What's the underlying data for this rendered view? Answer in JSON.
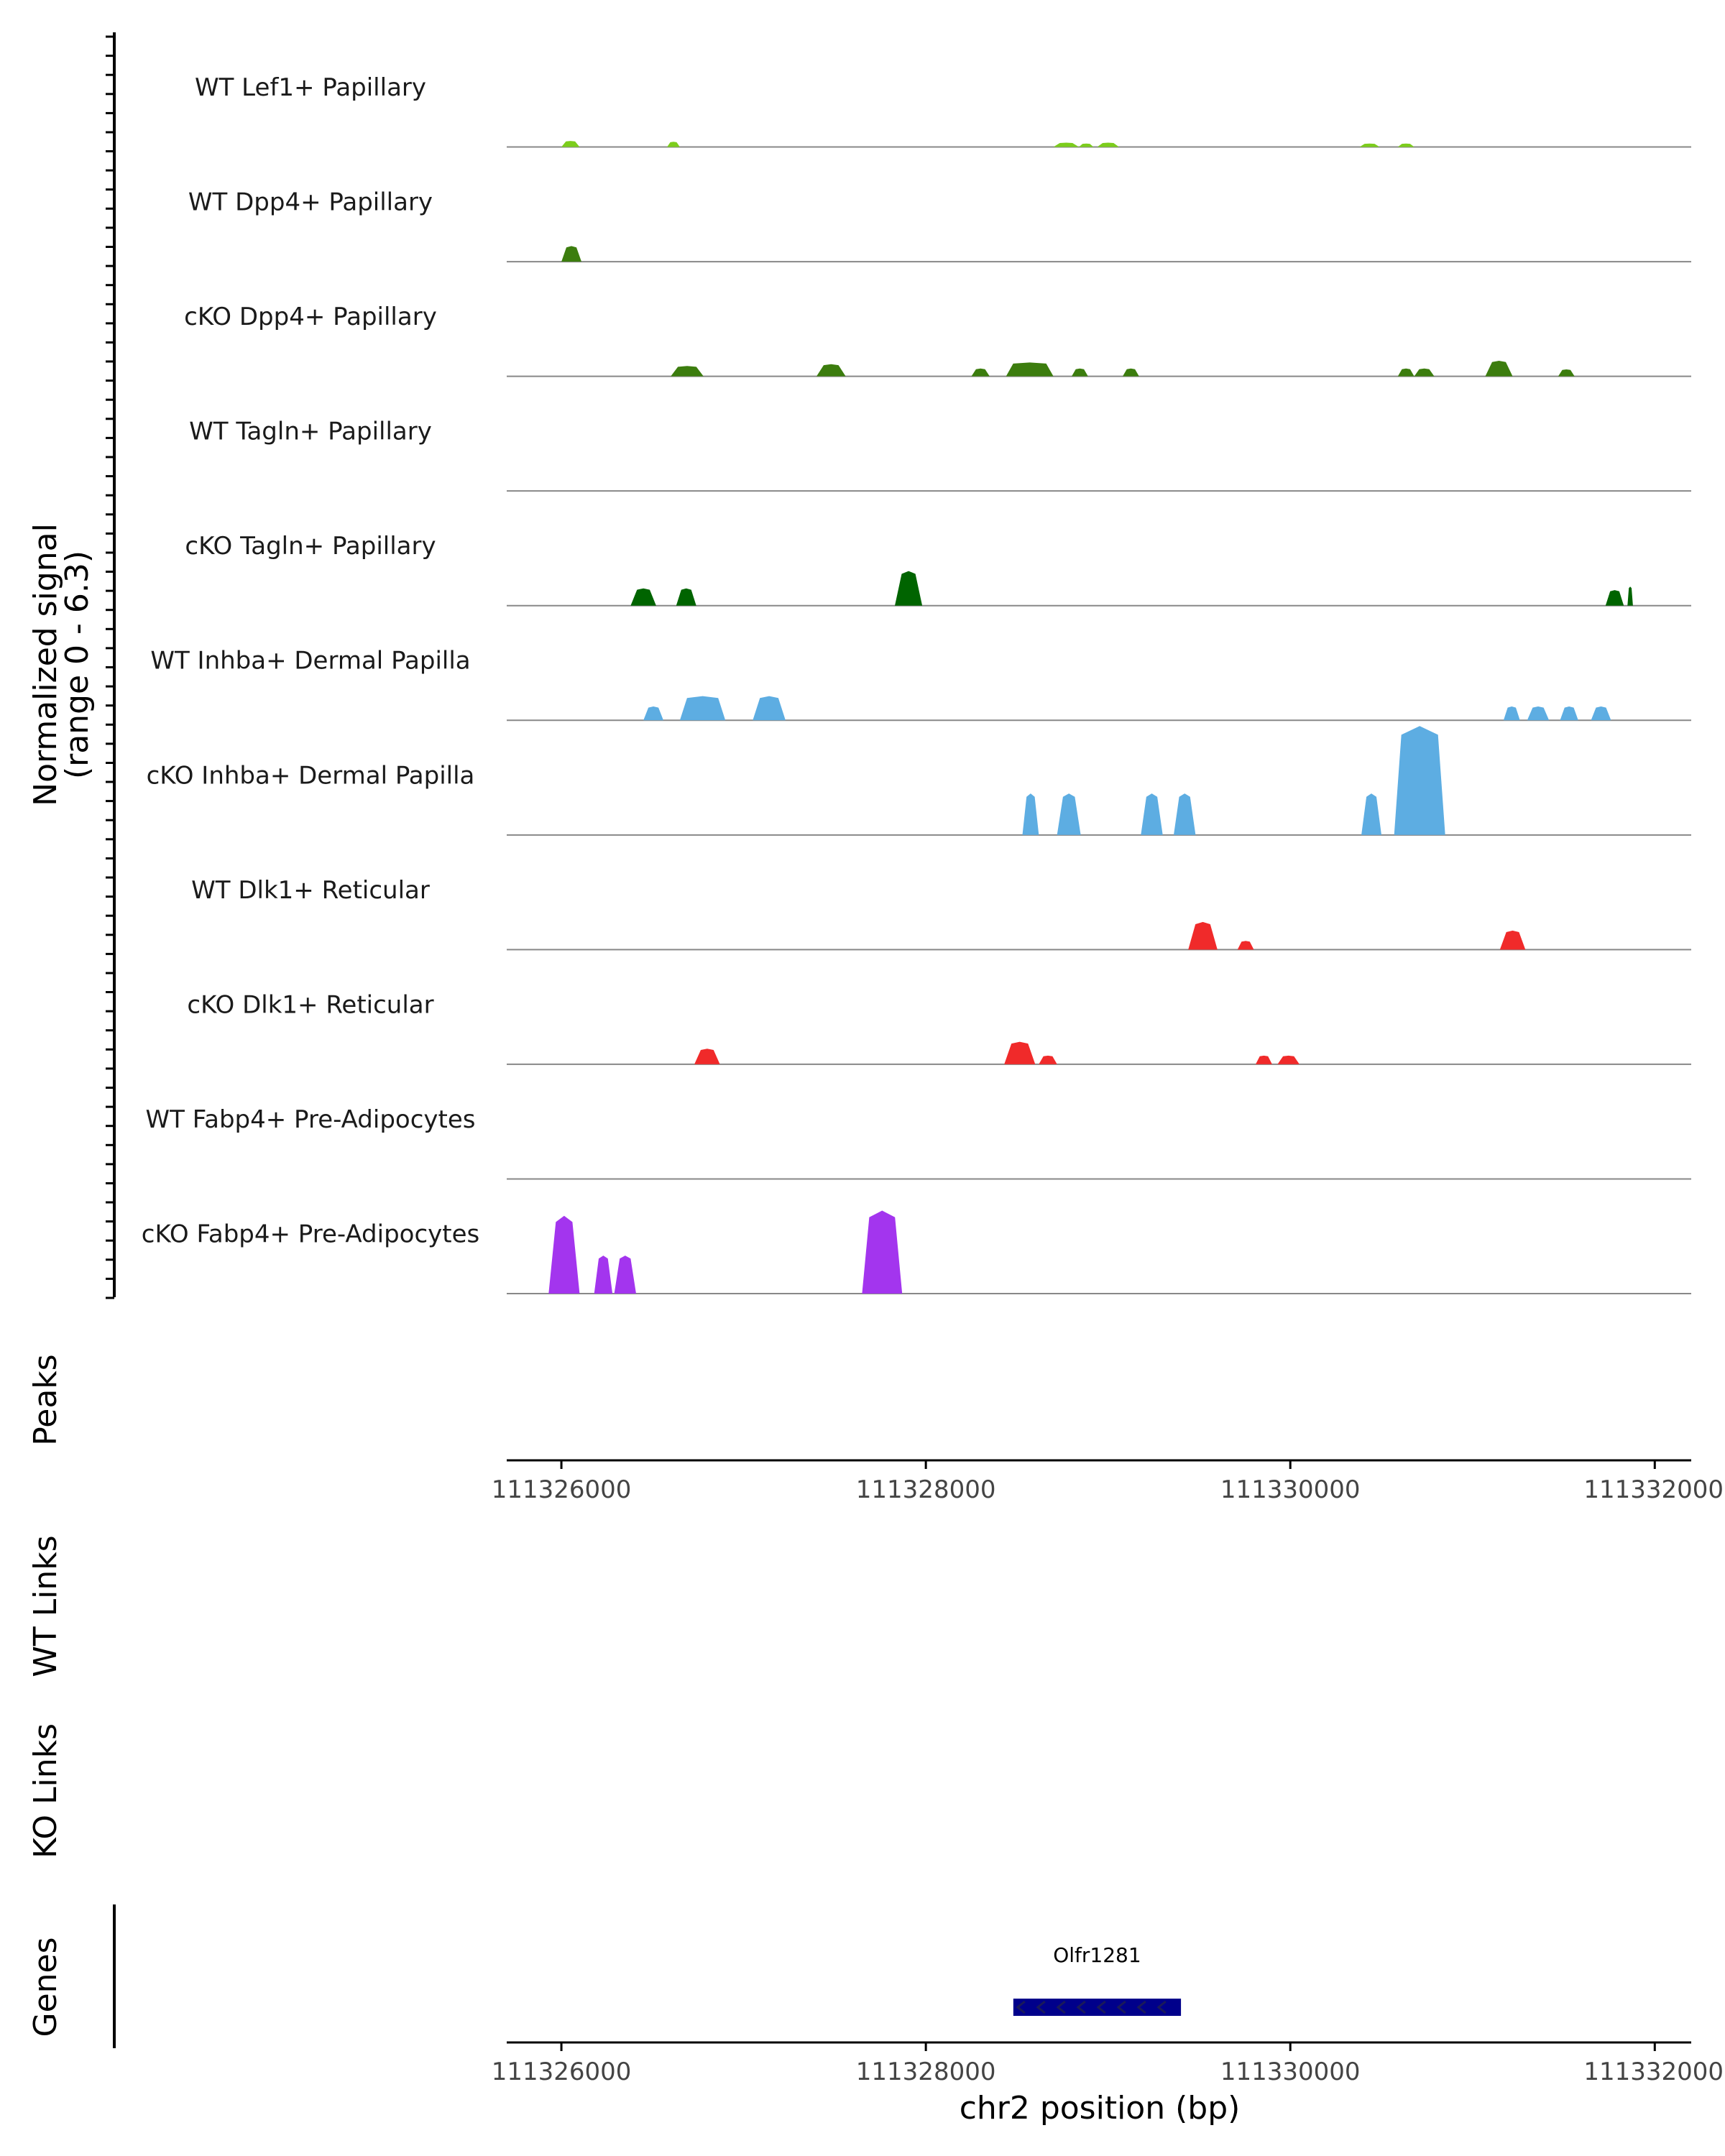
{
  "chart_data": {
    "type": "area",
    "chromosome": "chr2",
    "xlabel": "chr2 position (bp)",
    "xlim": [
      111325700,
      111332200
    ],
    "x_ticks": [
      111326000,
      111328000,
      111330000,
      111332000
    ],
    "x_tick_labels": [
      "111326000",
      "111328000",
      "111330000",
      "111332000"
    ],
    "y_label_line1": "Normalized signal",
    "y_label_line2": "(range 0 - 6.3)",
    "ylim": [
      0,
      6.3
    ],
    "track_labels": {
      "peaks": "Peaks",
      "wt_links": "WT Links",
      "ko_links": "KO Links",
      "genes": "Genes"
    },
    "series": [
      {
        "name": "WT Lef1+ Papillary",
        "color": "#7CCD1C",
        "peaks": [
          [
            111326000,
            111326100,
            0.35
          ],
          [
            111326580,
            111326650,
            0.3
          ],
          [
            111328700,
            111328840,
            0.25
          ],
          [
            111328840,
            111328920,
            0.2
          ],
          [
            111328940,
            111329060,
            0.25
          ],
          [
            111330380,
            111330490,
            0.2
          ],
          [
            111330590,
            111330680,
            0.2
          ]
        ]
      },
      {
        "name": "WT Dpp4+ Papillary",
        "color": "#3C7D0E",
        "peaks": [
          [
            111326000,
            111326110,
            0.9
          ]
        ]
      },
      {
        "name": "cKO Dpp4+ Papillary",
        "color": "#3C7D0E",
        "peaks": [
          [
            111326600,
            111326780,
            0.6
          ],
          [
            111327400,
            111327560,
            0.7
          ],
          [
            111328250,
            111328350,
            0.45
          ],
          [
            111328440,
            111328700,
            0.8
          ],
          [
            111328800,
            111328890,
            0.45
          ],
          [
            111329080,
            111329170,
            0.45
          ],
          [
            111330590,
            111330680,
            0.45
          ],
          [
            111330680,
            111330790,
            0.45
          ],
          [
            111331070,
            111331220,
            0.9
          ],
          [
            111331470,
            111331560,
            0.4
          ]
        ]
      },
      {
        "name": "WT Tagln+ Papillary",
        "color": "#1F6E0A",
        "peaks": []
      },
      {
        "name": "cKO Tagln+ Papillary",
        "color": "#006400",
        "peaks": [
          [
            111326380,
            111326520,
            1.0
          ],
          [
            111326630,
            111326740,
            1.0
          ],
          [
            111327830,
            111327980,
            2.0
          ],
          [
            111331730,
            111331830,
            0.9
          ],
          [
            111331850,
            111331880,
            1.1
          ]
        ]
      },
      {
        "name": "WT Inhba+ Dermal Papilla",
        "color": "#5DADE2",
        "peaks": [
          [
            111326450,
            111326560,
            0.8
          ],
          [
            111326650,
            111326900,
            1.4
          ],
          [
            111327050,
            111327230,
            1.4
          ],
          [
            111331170,
            111331260,
            0.8
          ],
          [
            111331300,
            111331420,
            0.8
          ],
          [
            111331480,
            111331580,
            0.8
          ],
          [
            111331650,
            111331760,
            0.8
          ]
        ]
      },
      {
        "name": "cKO Inhba+ Dermal Papilla",
        "color": "#5DADE2",
        "peaks": [
          [
            111328530,
            111328620,
            2.4
          ],
          [
            111328720,
            111328850,
            2.4
          ],
          [
            111329180,
            111329300,
            2.4
          ],
          [
            111329360,
            111329480,
            2.4
          ],
          [
            111330390,
            111330500,
            2.4
          ],
          [
            111330570,
            111330850,
            6.3
          ]
        ]
      },
      {
        "name": "WT Dlk1+ Reticular",
        "color": "#F02A2A",
        "peaks": [
          [
            111329440,
            111329600,
            1.6
          ],
          [
            111329710,
            111329800,
            0.5
          ],
          [
            111331150,
            111331290,
            1.1
          ]
        ]
      },
      {
        "name": "cKO Dlk1+ Reticular",
        "color": "#F02A2A",
        "peaks": [
          [
            111326730,
            111326870,
            0.9
          ],
          [
            111328430,
            111328600,
            1.3
          ],
          [
            111328620,
            111328720,
            0.5
          ],
          [
            111329810,
            111329900,
            0.5
          ],
          [
            111329930,
            111330050,
            0.5
          ]
        ]
      },
      {
        "name": "WT Fabp4+ Pre-Adipocytes",
        "color": "#A335EE",
        "peaks": []
      },
      {
        "name": "cKO Fabp4+ Pre-Adipocytes",
        "color": "#A335EE",
        "peaks": [
          [
            111325930,
            111326100,
            4.5
          ],
          [
            111326180,
            111326280,
            2.2
          ],
          [
            111326290,
            111326410,
            2.2
          ],
          [
            111327650,
            111327870,
            4.8
          ]
        ]
      }
    ],
    "genes": [
      {
        "name": "Olfr1281",
        "start": 111328480,
        "end": 111329400,
        "strand": "-",
        "color": "#00008B"
      }
    ]
  }
}
